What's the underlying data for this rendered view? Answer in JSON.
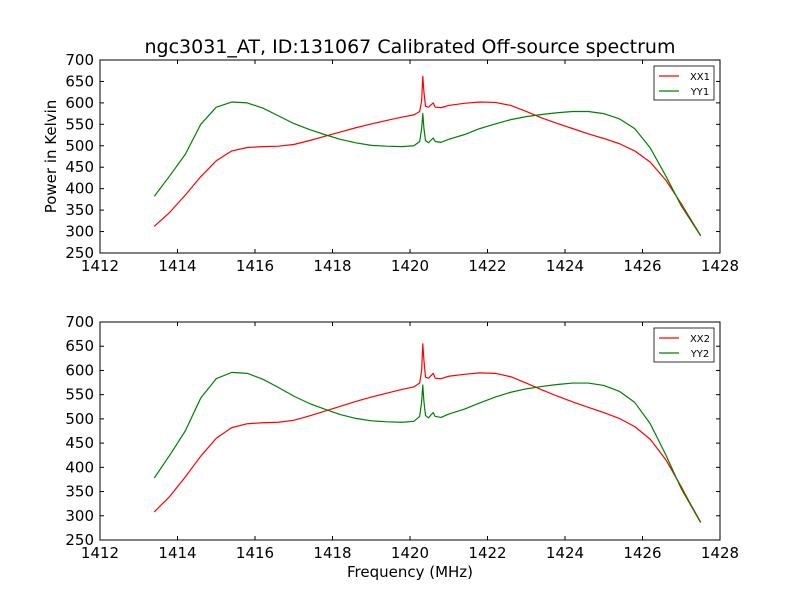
{
  "title": "ngc3031_AT, ID:131067 Calibrated Off-source spectrum",
  "colors": {
    "xx": "#ff0000",
    "yy": "#008000"
  },
  "chart_data": [
    {
      "type": "line",
      "ylabel": "Power in Kelvin",
      "xlabel": "",
      "xlim": [
        1412,
        1428
      ],
      "ylim": [
        250,
        700
      ],
      "xticks": [
        "1412",
        "1414",
        "1416",
        "1418",
        "1420",
        "1422",
        "1424",
        "1426",
        "1428"
      ],
      "yticks": [
        "250",
        "300",
        "350",
        "400",
        "450",
        "500",
        "550",
        "600",
        "650",
        "700"
      ],
      "legend": "top-right",
      "series": [
        {
          "name": "XX1",
          "color": "#ff0000",
          "points": [
            [
              1413.4,
              312
            ],
            [
              1413.8,
              345
            ],
            [
              1414.2,
              385
            ],
            [
              1414.6,
              428
            ],
            [
              1415.0,
              465
            ],
            [
              1415.4,
              488
            ],
            [
              1415.8,
              496
            ],
            [
              1416.2,
              498
            ],
            [
              1416.6,
              499
            ],
            [
              1417.0,
              503
            ],
            [
              1417.4,
              512
            ],
            [
              1417.8,
              522
            ],
            [
              1418.2,
              532
            ],
            [
              1418.6,
              542
            ],
            [
              1419.0,
              551
            ],
            [
              1419.4,
              559
            ],
            [
              1419.8,
              567
            ],
            [
              1420.1,
              572
            ],
            [
              1420.25,
              580
            ],
            [
              1420.3,
              605
            ],
            [
              1420.33,
              662
            ],
            [
              1420.36,
              625
            ],
            [
              1420.4,
              592
            ],
            [
              1420.48,
              590
            ],
            [
              1420.55,
              596
            ],
            [
              1420.6,
              600
            ],
            [
              1420.65,
              590
            ],
            [
              1420.8,
              589
            ],
            [
              1421.0,
              594
            ],
            [
              1421.4,
              599
            ],
            [
              1421.8,
              602
            ],
            [
              1422.2,
              601
            ],
            [
              1422.6,
              594
            ],
            [
              1423.0,
              580
            ],
            [
              1423.4,
              565
            ],
            [
              1423.8,
              552
            ],
            [
              1424.2,
              540
            ],
            [
              1424.6,
              528
            ],
            [
              1425.0,
              517
            ],
            [
              1425.4,
              505
            ],
            [
              1425.8,
              488
            ],
            [
              1426.2,
              462
            ],
            [
              1426.6,
              420
            ],
            [
              1427.0,
              365
            ],
            [
              1427.2,
              335
            ],
            [
              1427.5,
              291
            ]
          ]
        },
        {
          "name": "YY1",
          "color": "#008000",
          "points": [
            [
              1413.4,
              382
            ],
            [
              1413.8,
              430
            ],
            [
              1414.2,
              480
            ],
            [
              1414.6,
              550
            ],
            [
              1415.0,
              590
            ],
            [
              1415.4,
              602
            ],
            [
              1415.8,
              600
            ],
            [
              1416.2,
              588
            ],
            [
              1416.6,
              570
            ],
            [
              1417.0,
              552
            ],
            [
              1417.4,
              538
            ],
            [
              1417.8,
              526
            ],
            [
              1418.2,
              515
            ],
            [
              1418.6,
              507
            ],
            [
              1419.0,
              501
            ],
            [
              1419.4,
              499
            ],
            [
              1419.8,
              498
            ],
            [
              1420.1,
              500
            ],
            [
              1420.25,
              510
            ],
            [
              1420.3,
              540
            ],
            [
              1420.33,
              575
            ],
            [
              1420.36,
              540
            ],
            [
              1420.4,
              512
            ],
            [
              1420.48,
              507
            ],
            [
              1420.55,
              514
            ],
            [
              1420.6,
              518
            ],
            [
              1420.65,
              510
            ],
            [
              1420.8,
              508
            ],
            [
              1421.0,
              515
            ],
            [
              1421.4,
              526
            ],
            [
              1421.8,
              540
            ],
            [
              1422.2,
              551
            ],
            [
              1422.6,
              561
            ],
            [
              1423.0,
              568
            ],
            [
              1423.4,
              573
            ],
            [
              1423.8,
              577
            ],
            [
              1424.2,
              580
            ],
            [
              1424.6,
              580
            ],
            [
              1425.0,
              575
            ],
            [
              1425.4,
              563
            ],
            [
              1425.8,
              540
            ],
            [
              1426.2,
              495
            ],
            [
              1426.6,
              430
            ],
            [
              1427.0,
              360
            ],
            [
              1427.2,
              332
            ],
            [
              1427.5,
              290
            ]
          ]
        }
      ]
    },
    {
      "type": "line",
      "ylabel": "",
      "xlabel": "Frequency (MHz)",
      "xlim": [
        1412,
        1428
      ],
      "ylim": [
        250,
        700
      ],
      "xticks": [
        "1412",
        "1414",
        "1416",
        "1418",
        "1420",
        "1422",
        "1424",
        "1426",
        "1428"
      ],
      "yticks": [
        "250",
        "300",
        "350",
        "400",
        "450",
        "500",
        "550",
        "600",
        "650",
        "700"
      ],
      "legend": "top-right",
      "series": [
        {
          "name": "XX2",
          "color": "#ff0000",
          "points": [
            [
              1413.4,
              308
            ],
            [
              1413.8,
              340
            ],
            [
              1414.2,
              380
            ],
            [
              1414.6,
              423
            ],
            [
              1415.0,
              460
            ],
            [
              1415.4,
              482
            ],
            [
              1415.8,
              490
            ],
            [
              1416.2,
              492
            ],
            [
              1416.6,
              493
            ],
            [
              1417.0,
              497
            ],
            [
              1417.4,
              506
            ],
            [
              1417.8,
              516
            ],
            [
              1418.2,
              526
            ],
            [
              1418.6,
              536
            ],
            [
              1419.0,
              545
            ],
            [
              1419.4,
              553
            ],
            [
              1419.8,
              561
            ],
            [
              1420.1,
              566
            ],
            [
              1420.25,
              574
            ],
            [
              1420.3,
              600
            ],
            [
              1420.33,
              655
            ],
            [
              1420.36,
              620
            ],
            [
              1420.4,
              586
            ],
            [
              1420.48,
              584
            ],
            [
              1420.55,
              590
            ],
            [
              1420.6,
              594
            ],
            [
              1420.65,
              584
            ],
            [
              1420.8,
              583
            ],
            [
              1421.0,
              588
            ],
            [
              1421.4,
              592
            ],
            [
              1421.8,
              595
            ],
            [
              1422.2,
              594
            ],
            [
              1422.6,
              587
            ],
            [
              1423.0,
              574
            ],
            [
              1423.4,
              560
            ],
            [
              1423.8,
              547
            ],
            [
              1424.2,
              535
            ],
            [
              1424.6,
              524
            ],
            [
              1425.0,
              513
            ],
            [
              1425.4,
              501
            ],
            [
              1425.8,
              484
            ],
            [
              1426.2,
              458
            ],
            [
              1426.6,
              416
            ],
            [
              1427.0,
              360
            ],
            [
              1427.2,
              330
            ],
            [
              1427.5,
              287
            ]
          ]
        },
        {
          "name": "YY2",
          "color": "#008000",
          "points": [
            [
              1413.4,
              378
            ],
            [
              1413.8,
              425
            ],
            [
              1414.2,
              475
            ],
            [
              1414.6,
              543
            ],
            [
              1415.0,
              583
            ],
            [
              1415.4,
              596
            ],
            [
              1415.8,
              594
            ],
            [
              1416.2,
              582
            ],
            [
              1416.6,
              565
            ],
            [
              1417.0,
              547
            ],
            [
              1417.4,
              532
            ],
            [
              1417.8,
              520
            ],
            [
              1418.2,
              509
            ],
            [
              1418.6,
              501
            ],
            [
              1419.0,
              496
            ],
            [
              1419.4,
              494
            ],
            [
              1419.8,
              493
            ],
            [
              1420.1,
              495
            ],
            [
              1420.25,
              505
            ],
            [
              1420.3,
              535
            ],
            [
              1420.33,
              570
            ],
            [
              1420.36,
              535
            ],
            [
              1420.4,
              507
            ],
            [
              1420.48,
              502
            ],
            [
              1420.55,
              509
            ],
            [
              1420.6,
              513
            ],
            [
              1420.65,
              505
            ],
            [
              1420.8,
              503
            ],
            [
              1421.0,
              510
            ],
            [
              1421.4,
              520
            ],
            [
              1421.8,
              533
            ],
            [
              1422.2,
              545
            ],
            [
              1422.6,
              555
            ],
            [
              1423.0,
              562
            ],
            [
              1423.4,
              567
            ],
            [
              1423.8,
              571
            ],
            [
              1424.2,
              574
            ],
            [
              1424.6,
              574
            ],
            [
              1425.0,
              569
            ],
            [
              1425.4,
              557
            ],
            [
              1425.8,
              534
            ],
            [
              1426.2,
              490
            ],
            [
              1426.6,
              426
            ],
            [
              1427.0,
              356
            ],
            [
              1427.2,
              328
            ],
            [
              1427.5,
              286
            ]
          ]
        }
      ]
    }
  ]
}
